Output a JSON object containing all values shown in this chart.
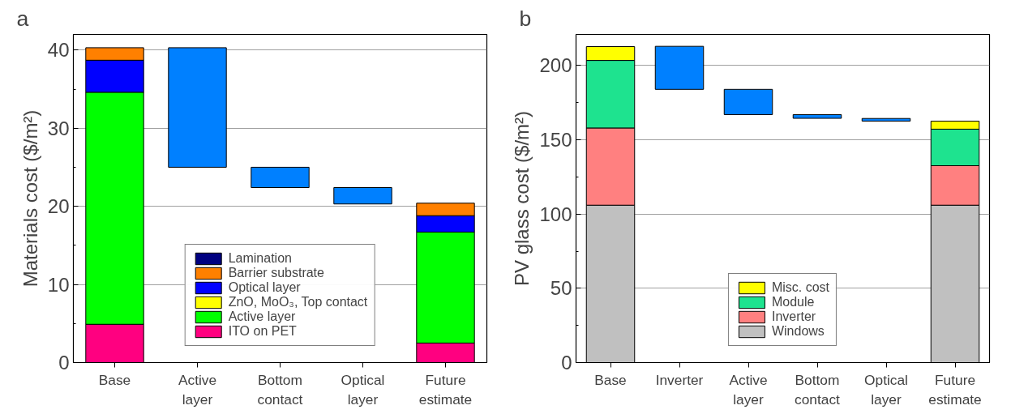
{
  "chart_data": [
    {
      "type": "bar",
      "title": "a",
      "ylabel": "Materials cost ($/m²)",
      "categories": [
        "Base",
        "Active\nlayer",
        "Bottom\ncontact",
        "Optical\nlayer",
        "Future\nestimate"
      ],
      "stacked": true,
      "ylim": [
        0,
        42
      ],
      "yticks": [
        0,
        10,
        20,
        30,
        40
      ],
      "grid": "y",
      "legend": "bottom",
      "series": [
        {
          "name": "ITO on PET",
          "color": "#ff0080",
          "values": [
            4.9,
            null,
            null,
            null,
            2.5
          ]
        },
        {
          "name": "Active layer",
          "color": "#00ff00",
          "values": [
            29.7,
            null,
            null,
            null,
            14.2
          ]
        },
        {
          "name": "ZnO, MoO₃, Top contact",
          "color": "#ffff00",
          "values": [
            null,
            null,
            null,
            null,
            null
          ]
        },
        {
          "name": "Optical layer",
          "color": "#0000ff",
          "values": [
            4.1,
            null,
            null,
            null,
            2.1
          ]
        },
        {
          "name": "Barrier substrate",
          "color": "#ff8000",
          "values": [
            1.6,
            null,
            null,
            null,
            1.6
          ]
        },
        {
          "name": "Lamination",
          "color": "#000080",
          "values": [
            null,
            null,
            null,
            null,
            null
          ]
        },
        {
          "color": "#0080ff",
          "values": [
            null,
            15.3,
            2.6,
            2.1,
            null
          ],
          "base": [
            null,
            25,
            22.4,
            20.3,
            null
          ]
        }
      ]
    },
    {
      "type": "bar",
      "title": "b",
      "ylabel": "PV glass cost ($/m²)",
      "categories": [
        "Base",
        "Inverter",
        "Active\nlayer",
        "Bottom\ncontact",
        "Optical\nlayer",
        "Future\nestimate"
      ],
      "stacked": true,
      "ylim": [
        0,
        221
      ],
      "yticks": [
        0,
        50,
        100,
        150,
        200
      ],
      "grid": "y",
      "legend": "bottom",
      "series": [
        {
          "name": "Windows",
          "color": "#c0c0c0",
          "values": [
            106,
            null,
            null,
            null,
            null,
            106
          ]
        },
        {
          "name": "Inverter",
          "color": "#ff8080",
          "values": [
            52,
            null,
            null,
            null,
            null,
            26.6
          ]
        },
        {
          "name": "Module",
          "color": "#1ee38f",
          "values": [
            45.5,
            null,
            null,
            null,
            null,
            24.6
          ]
        },
        {
          "name": "Misc. cost",
          "color": "#ffff00",
          "values": [
            9.3,
            null,
            null,
            null,
            null,
            5.4
          ]
        },
        {
          "color": "#0080ff",
          "values": [
            null,
            29,
            17,
            2.5,
            1.8,
            null
          ],
          "base": [
            null,
            184,
            167,
            164.5,
            162.6,
            null
          ]
        }
      ]
    }
  ]
}
